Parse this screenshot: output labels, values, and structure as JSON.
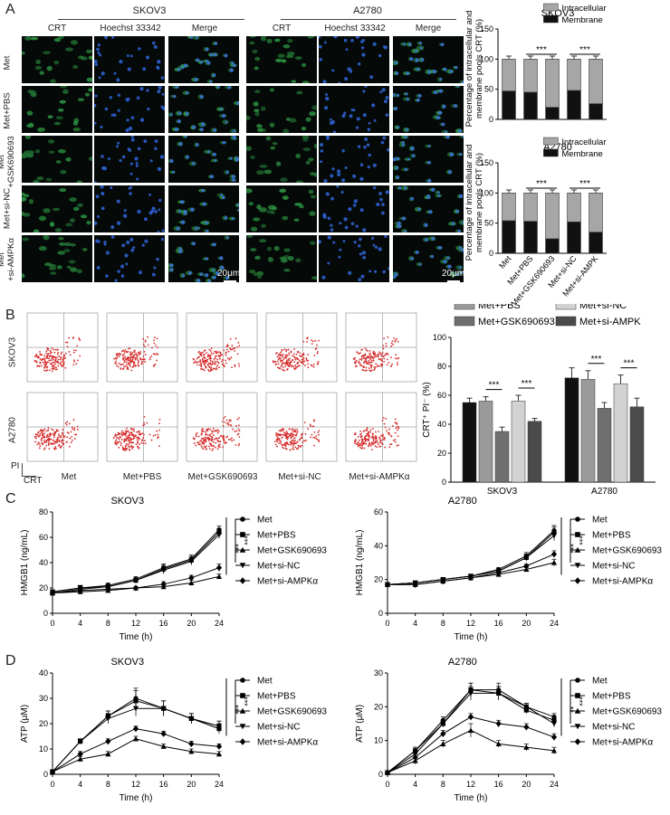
{
  "panels": {
    "A": "A",
    "B": "B",
    "C": "C",
    "D": "D"
  },
  "panelA": {
    "cell_lines": [
      "SKOV3",
      "A2780"
    ],
    "columns": [
      "CRT",
      "Hoechst 33342",
      "Merge",
      "CRT",
      "Hoechst 33342",
      "Merge"
    ],
    "rows": [
      "Met",
      "Met+PBS",
      "Met\n+GSK690693",
      "Met+si-NC",
      "Met\n+si-AMPKα"
    ],
    "scale_bar": "20μm"
  },
  "panelB_flow": {
    "rows": [
      "SKOV3",
      "A2780"
    ],
    "columns": [
      "Met",
      "Met+PBS",
      "Met+GSK690693",
      "Met+si-NC",
      "Met+si-AMPKα"
    ],
    "axis_y": "PI",
    "axis_x": "CRT"
  },
  "chart_data": [
    {
      "id": "A-SKOV3",
      "type": "bar",
      "stacked": true,
      "title": "SKOV3",
      "ylabel": "Percentage of intracellular and membrane pools CRT (%)",
      "ylim": [
        0,
        150
      ],
      "yticks": [
        0,
        50,
        100,
        150
      ],
      "categories": [
        "Met",
        "Met+PBS",
        "Met+GSK690693",
        "Met+si-NC",
        "Met+si-AMPK"
      ],
      "series": [
        {
          "name": "Membrane",
          "color": "#111111",
          "values": [
            47,
            45,
            20,
            48,
            26
          ]
        },
        {
          "name": "Intracellular",
          "color": "#a6a6a6",
          "values": [
            53,
            55,
            80,
            52,
            74
          ]
        }
      ],
      "significance": [
        "***",
        "***"
      ],
      "legend": "top-right"
    },
    {
      "id": "A-A2780",
      "type": "bar",
      "stacked": true,
      "title": "A2780",
      "ylabel": "Percentage of intracellular and membrane pools CRT (%)",
      "ylim": [
        0,
        150
      ],
      "yticks": [
        0,
        50,
        100,
        150
      ],
      "categories": [
        "Met",
        "Met+PBS",
        "Met+GSK690693",
        "Met+si-NC",
        "Met+si-AMPK"
      ],
      "series": [
        {
          "name": "Membrane",
          "color": "#111111",
          "values": [
            54,
            53,
            24,
            52,
            35
          ]
        },
        {
          "name": "Intracellular",
          "color": "#a6a6a6",
          "values": [
            46,
            47,
            76,
            48,
            65
          ]
        }
      ],
      "significance": [
        "***",
        "***"
      ],
      "legend": "top-right"
    },
    {
      "id": "B-bar",
      "type": "bar",
      "title": "",
      "ylabel": "CRT⁺ PI⁻ (%)",
      "ylim": [
        0,
        100
      ],
      "yticks": [
        0,
        20,
        40,
        60,
        80,
        100
      ],
      "categories": [
        "SKOV3",
        "A2780"
      ],
      "series": [
        {
          "name": "Met",
          "color": "#111111",
          "values": [
            55,
            72
          ],
          "err": [
            3,
            7
          ]
        },
        {
          "name": "Met+PBS",
          "color": "#9a9a9a",
          "values": [
            56,
            71
          ],
          "err": [
            3,
            6
          ]
        },
        {
          "name": "Met+GSK690693",
          "color": "#6f6f6f",
          "values": [
            35,
            51
          ],
          "err": [
            3,
            4
          ]
        },
        {
          "name": "Met+si-NC",
          "color": "#d2d2d2",
          "values": [
            56,
            68
          ],
          "err": [
            4,
            6
          ]
        },
        {
          "name": "Met+si-AMPK",
          "color": "#4b4b4b",
          "values": [
            42,
            52
          ],
          "err": [
            2,
            6
          ]
        }
      ],
      "significance": [
        "***",
        "***",
        "***",
        "***"
      ],
      "legend": "top"
    },
    {
      "id": "C-SKOV3",
      "type": "line",
      "title": "SKOV3",
      "xlabel": "Time (h)",
      "ylabel": "HMGB1 (ng/mL)",
      "x": [
        0,
        4,
        8,
        12,
        16,
        20,
        24
      ],
      "xlim": [
        0,
        24
      ],
      "ylim": [
        0,
        80
      ],
      "yticks": [
        0,
        20,
        40,
        60,
        80
      ],
      "series": [
        {
          "name": "Met",
          "marker": "circle",
          "values": [
            17,
            20,
            22,
            27,
            36,
            43,
            66
          ],
          "err": [
            1,
            2,
            2,
            2,
            3,
            3,
            3
          ]
        },
        {
          "name": "Met+PBS",
          "marker": "square",
          "values": [
            16,
            19,
            21,
            26,
            35,
            42,
            64
          ],
          "err": [
            1,
            2,
            2,
            2,
            3,
            3,
            3
          ]
        },
        {
          "name": "Met+GSK690693",
          "marker": "triangle-up",
          "values": [
            16,
            17,
            18,
            20,
            21,
            24,
            29
          ],
          "err": [
            1,
            1,
            1,
            1,
            1,
            2,
            2
          ]
        },
        {
          "name": "Met+si-NC",
          "marker": "triangle-down",
          "values": [
            17,
            20,
            21,
            26,
            34,
            41,
            62
          ],
          "err": [
            1,
            2,
            2,
            2,
            3,
            3,
            3
          ]
        },
        {
          "name": "Met+si-AMPKα",
          "marker": "diamond",
          "values": [
            16,
            18,
            19,
            20,
            23,
            28,
            36
          ],
          "err": [
            1,
            1,
            1,
            1,
            2,
            2,
            3
          ]
        }
      ],
      "significance": [
        "***",
        "***"
      ],
      "legend": "right"
    },
    {
      "id": "C-A2780",
      "type": "line",
      "title": "A2780",
      "xlabel": "Time (h)",
      "ylabel": "HMGB1 (ng/mL)",
      "x": [
        0,
        4,
        8,
        12,
        16,
        20,
        24
      ],
      "xlim": [
        0,
        24
      ],
      "ylim": [
        0,
        60
      ],
      "yticks": [
        0,
        20,
        40,
        60
      ],
      "series": [
        {
          "name": "Met",
          "marker": "circle",
          "values": [
            17,
            18,
            20,
            22,
            26,
            34,
            49
          ],
          "err": [
            1,
            1,
            1,
            1,
            1,
            2,
            3
          ]
        },
        {
          "name": "Met+PBS",
          "marker": "square",
          "values": [
            17,
            18,
            20,
            22,
            25,
            33,
            48
          ],
          "err": [
            1,
            1,
            1,
            1,
            1,
            2,
            3
          ]
        },
        {
          "name": "Met+GSK690693",
          "marker": "triangle-up",
          "values": [
            17,
            17,
            19,
            21,
            23,
            26,
            30
          ],
          "err": [
            1,
            1,
            1,
            1,
            1,
            1,
            2
          ]
        },
        {
          "name": "Met+si-NC",
          "marker": "triangle-down",
          "values": [
            17,
            18,
            20,
            22,
            25,
            33,
            46
          ],
          "err": [
            1,
            1,
            1,
            1,
            1,
            2,
            3
          ]
        },
        {
          "name": "Met+si-AMPKα",
          "marker": "diamond",
          "values": [
            17,
            17,
            19,
            21,
            24,
            28,
            35
          ],
          "err": [
            1,
            1,
            1,
            1,
            1,
            1,
            2
          ]
        }
      ],
      "significance": [
        "***",
        "***"
      ],
      "legend": "right"
    },
    {
      "id": "D-SKOV3",
      "type": "line",
      "title": "SKOV3",
      "xlabel": "Time (h)",
      "ylabel": "ATP (μM)",
      "x": [
        0,
        4,
        8,
        12,
        16,
        20,
        24
      ],
      "xlim": [
        0,
        24
      ],
      "ylim": [
        0,
        40
      ],
      "yticks": [
        0,
        10,
        20,
        30,
        40
      ],
      "series": [
        {
          "name": "Met",
          "marker": "circle",
          "values": [
            1,
            13,
            23,
            30,
            26,
            22,
            19
          ],
          "err": [
            0.5,
            1,
            2,
            4,
            3,
            2,
            2
          ]
        },
        {
          "name": "Met+PBS",
          "marker": "square",
          "values": [
            1,
            13,
            23,
            29,
            26,
            22,
            18
          ],
          "err": [
            0.5,
            1,
            2,
            4,
            3,
            2,
            2
          ]
        },
        {
          "name": "Met+GSK690693",
          "marker": "triangle-up",
          "values": [
            1,
            6,
            8,
            14,
            11,
            9,
            8
          ],
          "err": [
            0.5,
            1,
            1,
            1,
            1,
            1,
            1
          ]
        },
        {
          "name": "Met+si-NC",
          "marker": "triangle-down",
          "values": [
            1,
            13,
            22,
            26,
            26,
            22,
            19
          ],
          "err": [
            0.5,
            1,
            2,
            3,
            3,
            2,
            2
          ]
        },
        {
          "name": "Met+si-AMPKα",
          "marker": "diamond",
          "values": [
            1,
            8,
            13,
            18,
            16,
            12,
            11
          ],
          "err": [
            0.5,
            1,
            1,
            1,
            1,
            1,
            1
          ]
        }
      ],
      "significance": [
        "***",
        "***"
      ],
      "legend": "right"
    },
    {
      "id": "D-A2780",
      "type": "line",
      "title": "A2780",
      "xlabel": "Time (h)",
      "ylabel": "ATP (μM)",
      "x": [
        0,
        4,
        8,
        12,
        16,
        20,
        24
      ],
      "xlim": [
        0,
        24
      ],
      "ylim": [
        0,
        30
      ],
      "yticks": [
        0,
        10,
        20,
        30
      ],
      "series": [
        {
          "name": "Met",
          "marker": "circle",
          "values": [
            0.5,
            7,
            16,
            25,
            25,
            20,
            17
          ],
          "err": [
            0.3,
            1,
            1,
            2,
            2,
            1,
            1
          ]
        },
        {
          "name": "Met+PBS",
          "marker": "square",
          "values": [
            0.5,
            7,
            15,
            25,
            24,
            19,
            16
          ],
          "err": [
            0.3,
            1,
            1,
            2,
            2,
            1,
            1
          ]
        },
        {
          "name": "Met+GSK690693",
          "marker": "triangle-up",
          "values": [
            0.5,
            4,
            9,
            13,
            9,
            8,
            7
          ],
          "err": [
            0.3,
            1,
            1,
            2,
            1,
            1,
            1
          ]
        },
        {
          "name": "Met+si-NC",
          "marker": "triangle-down",
          "values": [
            0.5,
            6,
            15,
            24,
            24,
            20,
            15
          ],
          "err": [
            0.3,
            1,
            1,
            2,
            2,
            1,
            1
          ]
        },
        {
          "name": "Met+si-AMPKα",
          "marker": "diamond",
          "values": [
            0.5,
            5,
            12,
            17,
            15,
            14,
            11
          ],
          "err": [
            0.3,
            1,
            1,
            1,
            1,
            1,
            1
          ]
        }
      ],
      "significance": [
        "**",
        "***"
      ],
      "legend": "right"
    }
  ]
}
